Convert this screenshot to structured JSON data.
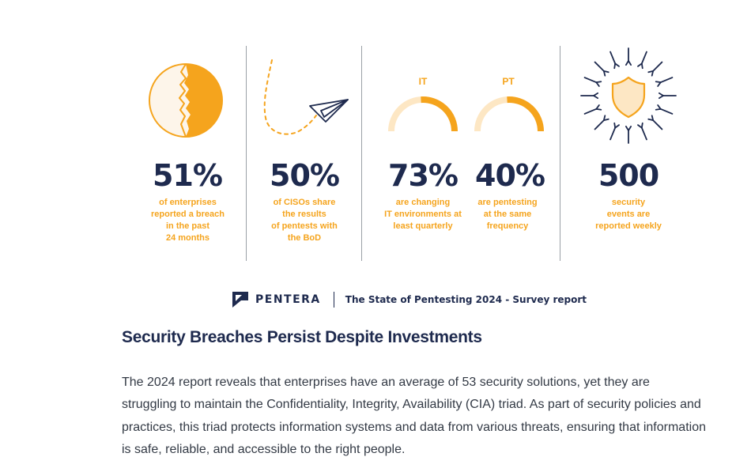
{
  "colors": {
    "accent": "#f5a41d",
    "navy": "#1e2a4e",
    "divider": "#9aa0a6"
  },
  "stats": [
    {
      "value": "51%",
      "caption": "of enterprises\nreported a breach\nin the past\n24 months",
      "icon": "breached-circle-icon"
    },
    {
      "value": "50%",
      "caption": "of CISOs share\nthe results\nof pentests with\nthe BoD",
      "icon": "paper-plane-icon"
    },
    {
      "value": "73%",
      "caption": "are changing\nIT environments at\nleast quarterly",
      "gauge_label": "IT",
      "icon": "gauge-icon"
    },
    {
      "value": "40%",
      "caption": "are pentesting\nat the same\nfrequency",
      "gauge_label": "PT",
      "icon": "gauge-icon"
    },
    {
      "value": "500",
      "caption": "security\nevents are\nreported weekly",
      "icon": "shield-attack-icon"
    }
  ],
  "brand": {
    "name": "PENTERA",
    "report": "The State of Pentesting 2024 - Survey report"
  },
  "article": {
    "heading": "Security Breaches Persist Despite Investments",
    "body": "The 2024 report reveals that enterprises have an average of 53 security solutions, yet they are struggling to maintain the Confidentiality, Integrity, Availability (CIA) triad. As part of security policies and practices, this triad protects information systems and data from various threats, ensuring that information is safe, reliable, and accessible to the right people."
  }
}
